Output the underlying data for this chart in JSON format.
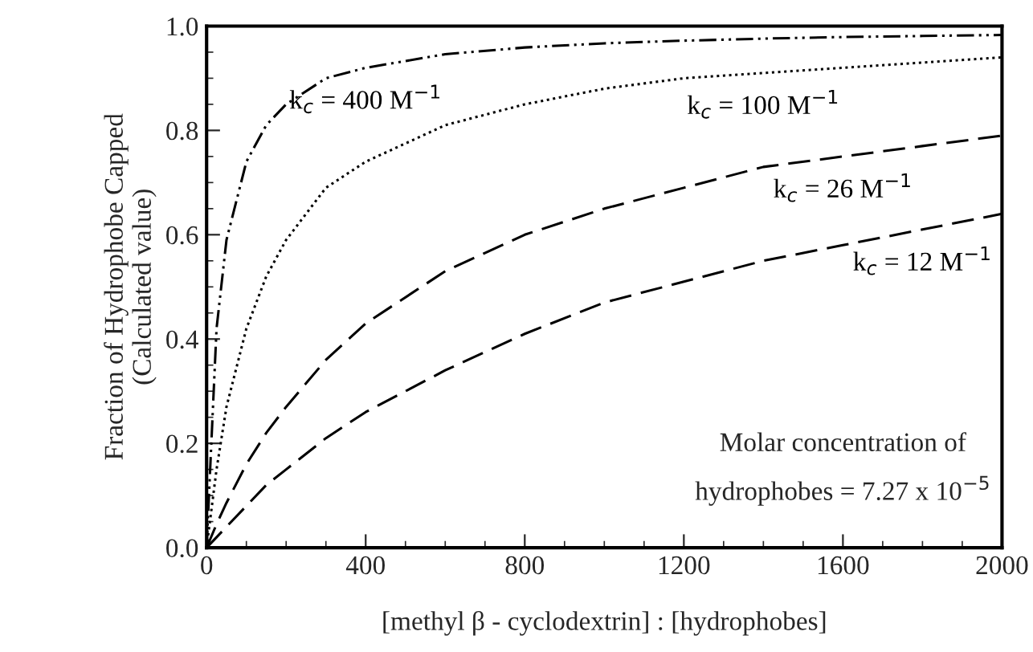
{
  "chart_data": {
    "type": "line",
    "xlabel": "[methyl β - cyclodextrin] : [hydrophobes]",
    "ylabel": "Fraction of Hydrophobe Capped\n(Calculated value)",
    "x": [
      0,
      25,
      50,
      100,
      150,
      200,
      300,
      400,
      600,
      800,
      1000,
      1200,
      1400,
      1600,
      1800,
      2000
    ],
    "series": [
      {
        "name": "k$_{c}$ = 400 M$^{−1}$",
        "color": "#000000",
        "line_style": "dashdot",
        "values": [
          0,
          0.42,
          0.59,
          0.74,
          0.81,
          0.85,
          0.9,
          0.92,
          0.946,
          0.959,
          0.967,
          0.972,
          0.976,
          0.979,
          0.981,
          0.983
        ]
      },
      {
        "name": "k$_{c}$ = 100 M$^{−1}$",
        "color": "#000000",
        "line_style": "dotted",
        "values": [
          0,
          0.15,
          0.27,
          0.42,
          0.52,
          0.59,
          0.69,
          0.74,
          0.81,
          0.85,
          0.88,
          0.9,
          0.91,
          0.92,
          0.93,
          0.94
        ]
      },
      {
        "name": "k$_{c}$ = 26 M$^{−1}$",
        "color": "#000000",
        "line_style": "dashed",
        "values": [
          0,
          0.045,
          0.086,
          0.16,
          0.22,
          0.27,
          0.36,
          0.43,
          0.53,
          0.6,
          0.65,
          0.69,
          0.73,
          0.75,
          0.77,
          0.79
        ]
      },
      {
        "name": "k$_{c}$ = 12 M$^{−1}$",
        "color": "#000000",
        "line_style": "dashed",
        "values": [
          0,
          0.02,
          0.04,
          0.08,
          0.12,
          0.15,
          0.21,
          0.26,
          0.34,
          0.41,
          0.47,
          0.51,
          0.55,
          0.58,
          0.61,
          0.64
        ]
      }
    ],
    "xlim": [
      0,
      2000
    ],
    "ylim": [
      0,
      1.0
    ],
    "xticks": [
      0,
      400,
      800,
      1200,
      1600,
      2000
    ],
    "yticks": [
      {
        "value": 0,
        "label": "0.0"
      },
      {
        "value": 0.2,
        "label": "0.2"
      },
      {
        "value": 0.4,
        "label": "0.4"
      },
      {
        "value": 0.6,
        "label": "0.6"
      },
      {
        "value": 0.8,
        "label": "0.8"
      },
      {
        "value": 1.0,
        "label": "1.0"
      }
    ],
    "grid": false,
    "legend": false,
    "marker": "none",
    "annotations": [
      "Molar concentration of\nhydrophobes = 7.27 x 10$^{−5}$"
    ]
  }
}
